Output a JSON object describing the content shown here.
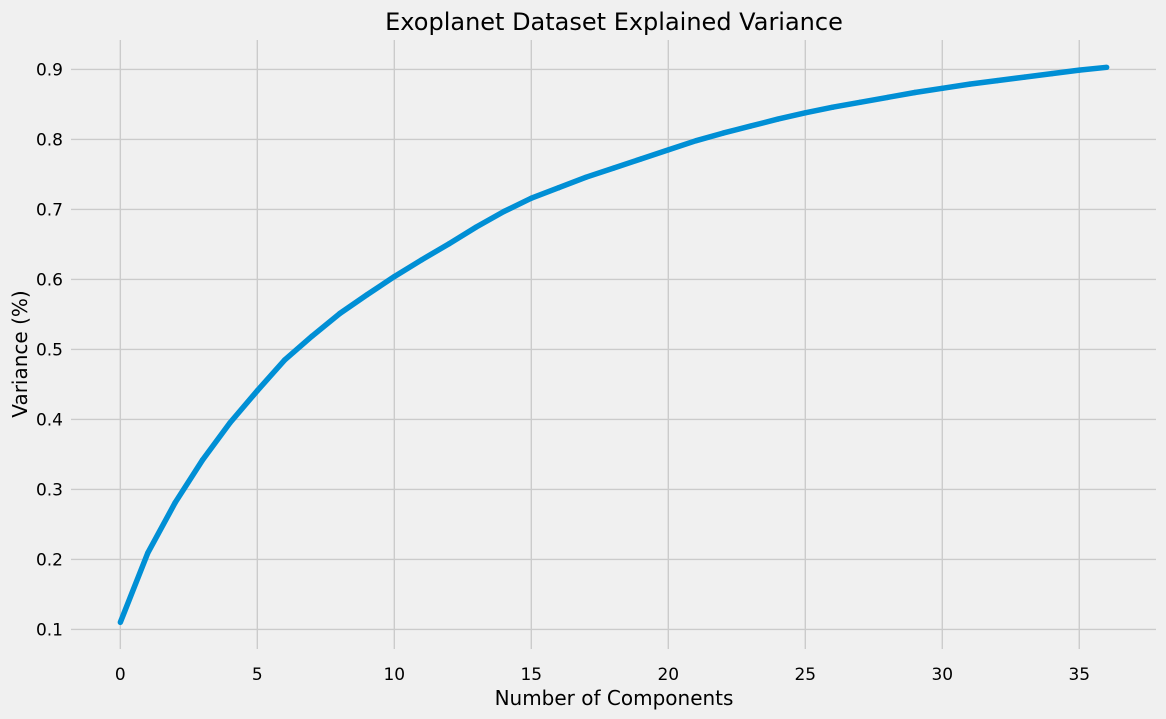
{
  "chart_data": {
    "type": "line",
    "title": "Exoplanet Dataset Explained Variance",
    "xlabel": "Number of Components",
    "ylabel": "Variance (%)",
    "xlim": [
      -1.8,
      37.8
    ],
    "ylim": [
      0.072,
      0.942
    ],
    "xticks": [
      0,
      5,
      10,
      15,
      20,
      25,
      30,
      35
    ],
    "yticks": [
      0.1,
      0.2,
      0.3,
      0.4,
      0.5,
      0.6,
      0.7,
      0.8,
      0.9
    ],
    "grid": true,
    "series": [
      {
        "color": "#008fd5",
        "x": [
          0,
          1,
          2,
          3,
          4,
          5,
          6,
          7,
          8,
          9,
          10,
          11,
          12,
          13,
          14,
          15,
          16,
          17,
          18,
          19,
          20,
          21,
          22,
          23,
          24,
          25,
          26,
          27,
          28,
          29,
          30,
          31,
          32,
          33,
          34,
          35,
          36
        ],
        "values": [
          0.11,
          0.209,
          0.281,
          0.342,
          0.395,
          0.441,
          0.485,
          0.519,
          0.551,
          0.578,
          0.604,
          0.628,
          0.651,
          0.675,
          0.697,
          0.716,
          0.731,
          0.746,
          0.759,
          0.772,
          0.785,
          0.798,
          0.809,
          0.819,
          0.829,
          0.838,
          0.846,
          0.853,
          0.86,
          0.867,
          0.873,
          0.879,
          0.884,
          0.889,
          0.894,
          0.899,
          0.903
        ]
      }
    ]
  }
}
